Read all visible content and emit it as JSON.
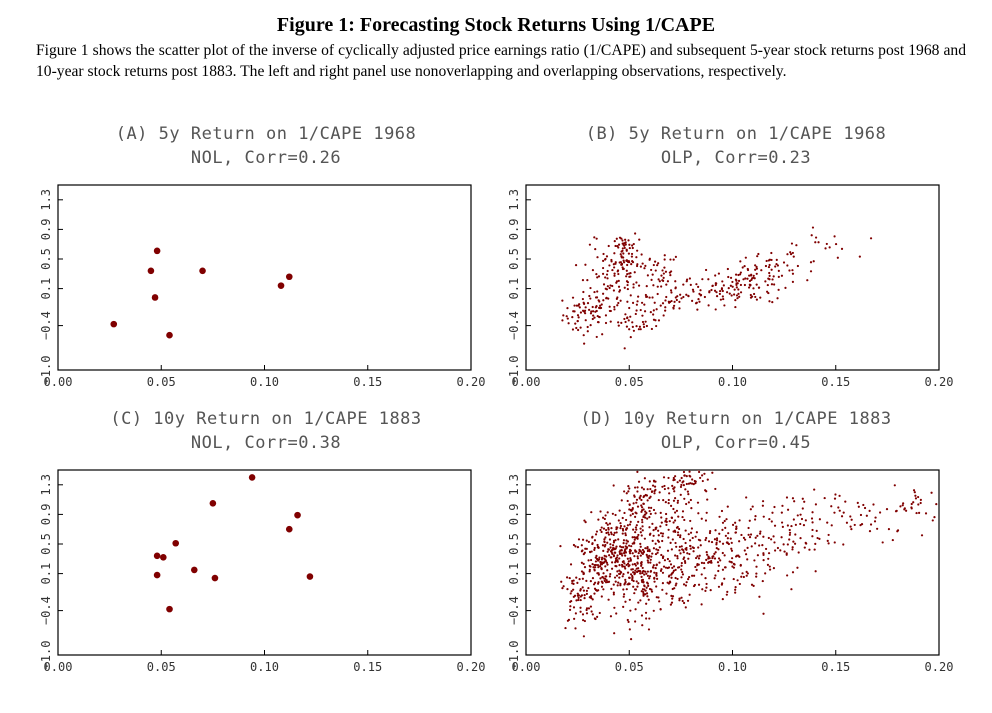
{
  "figure": {
    "title": "Figure 1: Forecasting Stock Returns Using 1/CAPE",
    "caption": "Figure 1 shows the scatter plot of the inverse of cyclically adjusted price earnings ratio (1/CAPE) and subsequent 5-year stock returns post 1968 and 10-year stock returns post 1883. The left and right panel use nonoverlapping and overlapping observations, respectively."
  },
  "colors": {
    "points": "#800000",
    "axis": "#000000",
    "title_text": "#555555"
  },
  "chart_data": [
    {
      "type": "scatter",
      "panel": "A",
      "title": "(A) 5y Return on 1/CAPE 1968",
      "subtitle": "NOL, Corr=0.26",
      "xlim": [
        0.0,
        0.2
      ],
      "ylim": [
        -1.0,
        1.5
      ],
      "x_ticks": [
        "0.00",
        "0.05",
        "0.10",
        "0.15",
        "0.20"
      ],
      "y_ticks": [
        "-1.0",
        "-0.4",
        "0.1",
        "0.5",
        "0.9",
        "1.3"
      ],
      "points": [
        [
          0.027,
          -0.38
        ],
        [
          0.045,
          0.34
        ],
        [
          0.047,
          -0.02
        ],
        [
          0.048,
          0.61
        ],
        [
          0.054,
          -0.53
        ],
        [
          0.07,
          0.34
        ],
        [
          0.108,
          0.14
        ],
        [
          0.112,
          0.26
        ]
      ]
    },
    {
      "type": "scatter",
      "panel": "B",
      "title": "(B) 5y Return on 1/CAPE 1968",
      "subtitle": "OLP, Corr=0.23",
      "xlim": [
        0.0,
        0.2
      ],
      "ylim": [
        -1.0,
        1.5
      ],
      "x_ticks": [
        "0.00",
        "0.05",
        "0.10",
        "0.15",
        "0.20"
      ],
      "y_ticks": [
        "-1.0",
        "-0.4",
        "0.1",
        "0.5",
        "0.9",
        "1.3"
      ],
      "clusters": [
        {
          "x": 0.03,
          "y": -0.25,
          "sx": 0.006,
          "sy": 0.15,
          "n": 70
        },
        {
          "x": 0.038,
          "y": 0.15,
          "sx": 0.006,
          "sy": 0.25,
          "n": 60
        },
        {
          "x": 0.047,
          "y": 0.62,
          "sx": 0.004,
          "sy": 0.15,
          "n": 60
        },
        {
          "x": 0.05,
          "y": 0.3,
          "sx": 0.006,
          "sy": 0.2,
          "n": 40
        },
        {
          "x": 0.055,
          "y": -0.3,
          "sx": 0.007,
          "sy": 0.12,
          "n": 50
        },
        {
          "x": 0.065,
          "y": 0.2,
          "sx": 0.008,
          "sy": 0.15,
          "n": 50
        },
        {
          "x": 0.075,
          "y": 0.0,
          "sx": 0.008,
          "sy": 0.15,
          "n": 40
        },
        {
          "x": 0.095,
          "y": 0.05,
          "sx": 0.007,
          "sy": 0.12,
          "n": 40
        },
        {
          "x": 0.11,
          "y": 0.2,
          "sx": 0.008,
          "sy": 0.15,
          "n": 80
        },
        {
          "x": 0.125,
          "y": 0.4,
          "sx": 0.01,
          "sy": 0.12,
          "n": 35
        },
        {
          "x": 0.145,
          "y": 0.7,
          "sx": 0.007,
          "sy": 0.1,
          "n": 15
        }
      ]
    },
    {
      "type": "scatter",
      "panel": "C",
      "title": "(C) 10y Return on 1/CAPE 1883",
      "subtitle": "NOL, Corr=0.38",
      "xlim": [
        0.0,
        0.2
      ],
      "ylim": [
        -1.0,
        1.5
      ],
      "x_ticks": [
        "0.00",
        "0.05",
        "0.10",
        "0.15",
        "0.20"
      ],
      "y_ticks": [
        "-1.0",
        "-0.4",
        "0.1",
        "0.5",
        "0.9",
        "1.3"
      ],
      "points": [
        [
          0.048,
          0.08
        ],
        [
          0.048,
          0.34
        ],
        [
          0.051,
          0.32
        ],
        [
          0.054,
          -0.38
        ],
        [
          0.057,
          0.51
        ],
        [
          0.066,
          0.15
        ],
        [
          0.075,
          1.05
        ],
        [
          0.076,
          0.04
        ],
        [
          0.094,
          1.4
        ],
        [
          0.112,
          0.7
        ],
        [
          0.116,
          0.89
        ],
        [
          0.122,
          0.06
        ]
      ]
    },
    {
      "type": "scatter",
      "panel": "D",
      "title": "(D) 10y Return on 1/CAPE 1883",
      "subtitle": "OLP, Corr=0.45",
      "xlim": [
        0.0,
        0.2
      ],
      "ylim": [
        -1.0,
        1.5
      ],
      "x_ticks": [
        "0.00",
        "0.05",
        "0.10",
        "0.15",
        "0.20"
      ],
      "y_ticks": [
        "-1.0",
        "-0.4",
        "0.1",
        "0.5",
        "0.9",
        "1.3"
      ],
      "clusters": [
        {
          "x": 0.025,
          "y": -0.3,
          "sx": 0.005,
          "sy": 0.2,
          "n": 60
        },
        {
          "x": 0.035,
          "y": 0.2,
          "sx": 0.007,
          "sy": 0.25,
          "n": 120
        },
        {
          "x": 0.045,
          "y": 0.45,
          "sx": 0.008,
          "sy": 0.25,
          "n": 200
        },
        {
          "x": 0.055,
          "y": 0.0,
          "sx": 0.009,
          "sy": 0.25,
          "n": 180
        },
        {
          "x": 0.06,
          "y": 1.0,
          "sx": 0.01,
          "sy": 0.25,
          "n": 150
        },
        {
          "x": 0.08,
          "y": 1.35,
          "sx": 0.007,
          "sy": 0.1,
          "n": 50
        },
        {
          "x": 0.075,
          "y": 0.4,
          "sx": 0.012,
          "sy": 0.3,
          "n": 180
        },
        {
          "x": 0.095,
          "y": 0.2,
          "sx": 0.012,
          "sy": 0.3,
          "n": 120
        },
        {
          "x": 0.12,
          "y": 0.6,
          "sx": 0.015,
          "sy": 0.25,
          "n": 80
        },
        {
          "x": 0.15,
          "y": 0.9,
          "sx": 0.02,
          "sy": 0.2,
          "n": 70
        },
        {
          "x": 0.19,
          "y": 1.0,
          "sx": 0.006,
          "sy": 0.15,
          "n": 30
        }
      ]
    }
  ]
}
